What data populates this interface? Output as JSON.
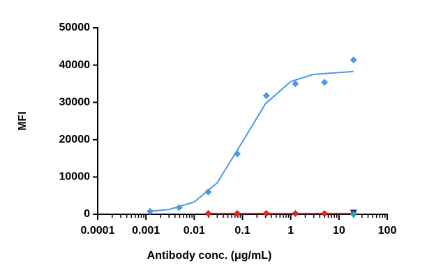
{
  "chart_data": {
    "type": "scatter",
    "xlabel": "Antibody conc. (μg/mL)",
    "ylabel": "MFI",
    "xscale": "log",
    "xlim": [
      0.0001,
      100
    ],
    "xticks": [
      0.0001,
      0.001,
      0.01,
      0.1,
      1,
      10,
      100
    ],
    "ylim": [
      0,
      50000
    ],
    "yticks": [
      0,
      10000,
      20000,
      30000,
      40000,
      50000
    ],
    "series": [
      {
        "color": "#4c98e8",
        "marker": "diamond",
        "line": false,
        "x": [
          0.00122,
          0.00488,
          0.0195,
          0.078,
          0.3125,
          1.25,
          5,
          20
        ],
        "values": [
          800,
          1800,
          6000,
          16200,
          31800,
          35000,
          35400,
          41400
        ]
      },
      {
        "color": "#4c98e8",
        "marker": "none",
        "line": true,
        "x": [
          0.00122,
          0.003,
          0.01,
          0.03,
          0.1,
          0.3,
          1,
          3,
          20
        ],
        "values": [
          800,
          1290,
          3290,
          8460,
          19450,
          29650,
          35600,
          37520,
          38290
        ]
      },
      {
        "color": "#e8221c",
        "marker": "diamond",
        "line": true,
        "x": [
          0.0195,
          0.078,
          0.3125,
          1.25,
          5,
          20
        ],
        "values": [
          200,
          200,
          200,
          200,
          200,
          200
        ]
      },
      {
        "color": "#1a1aa8",
        "marker": "triangle",
        "line": false,
        "x": [
          20
        ],
        "values": [
          500
        ]
      },
      {
        "color": "#2aa89a",
        "marker": "diamond",
        "line": false,
        "x": [
          20
        ],
        "values": [
          0
        ]
      }
    ]
  }
}
